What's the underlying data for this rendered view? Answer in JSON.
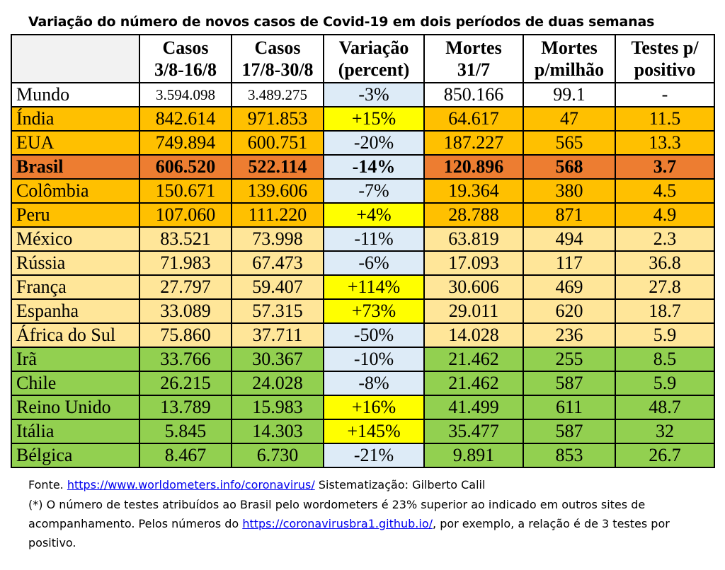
{
  "title": "Variação do número de novos casos de Covid-19 em dois períodos de duas semanas",
  "colors": {
    "white": "#ffffff",
    "orange": "#ffc000",
    "dark_orange": "#ed7d31",
    "light_orange": "#ffe699",
    "green": "#92d050",
    "yellow": "#ffff00",
    "light_blue": "#ddebf7",
    "header_gray": "#f2f2f2"
  },
  "headers": [
    {
      "line1": "",
      "line2": ""
    },
    {
      "line1": "Casos",
      "line2": "3/8-16/8"
    },
    {
      "line1": "Casos",
      "line2": "17/8-30/8"
    },
    {
      "line1": "Variação",
      "line2": "(percent)"
    },
    {
      "line1": "Mortes",
      "line2": "31/7"
    },
    {
      "line1": "Mortes",
      "line2": "p/milhão"
    },
    {
      "line1": "Testes p/",
      "line2": "positivo"
    }
  ],
  "rows": [
    {
      "country": "Mundo",
      "casos1": "3.594.098",
      "casos2": "3.489.275",
      "variacao": "-3%",
      "mortes": "850.166",
      "mortes_milhao": "99.1",
      "testes": "-",
      "row_color": "white",
      "var_color": "light_blue",
      "bold": false
    },
    {
      "country": "Índia",
      "casos1": "842.614",
      "casos2": "971.853",
      "variacao": "+15%",
      "mortes": "64.617",
      "mortes_milhao": "47",
      "testes": "11.5",
      "row_color": "orange",
      "var_color": "yellow",
      "bold": false
    },
    {
      "country": "EUA",
      "casos1": "749.894",
      "casos2": "600.751",
      "variacao": "-20%",
      "mortes": "187.227",
      "mortes_milhao": "565",
      "testes": "13.3",
      "row_color": "orange",
      "var_color": "light_blue",
      "bold": false
    },
    {
      "country": "Brasil",
      "casos1": "606.520",
      "casos2": "522.114",
      "variacao": "-14%",
      "mortes": "120.896",
      "mortes_milhao": "568",
      "testes": "3.7",
      "row_color": "dark_orange",
      "var_color": "light_blue",
      "bold": true
    },
    {
      "country": "Colômbia",
      "casos1": "150.671",
      "casos2": "139.606",
      "variacao": "-7%",
      "mortes": "19.364",
      "mortes_milhao": "380",
      "testes": "4.5",
      "row_color": "orange",
      "var_color": "light_blue",
      "bold": false
    },
    {
      "country": "Peru",
      "casos1": "107.060",
      "casos2": "111.220",
      "variacao": "+4%",
      "mortes": "28.788",
      "mortes_milhao": "871",
      "testes": "4.9",
      "row_color": "orange",
      "var_color": "yellow",
      "bold": false
    },
    {
      "country": "México",
      "casos1": "83.521",
      "casos2": "73.998",
      "variacao": "-11%",
      "mortes": "63.819",
      "mortes_milhao": "494",
      "testes": "2.3",
      "row_color": "light_orange",
      "var_color": "light_blue",
      "bold": false
    },
    {
      "country": "Rússia",
      "casos1": "71.983",
      "casos2": "67.473",
      "variacao": "-6%",
      "mortes": "17.093",
      "mortes_milhao": "117",
      "testes": "36.8",
      "row_color": "light_orange",
      "var_color": "light_blue",
      "bold": false
    },
    {
      "country": "França",
      "casos1": "27.797",
      "casos2": "59.407",
      "variacao": "+114%",
      "mortes": "30.606",
      "mortes_milhao": "469",
      "testes": "27.8",
      "row_color": "light_orange",
      "var_color": "yellow",
      "bold": false
    },
    {
      "country": "Espanha",
      "casos1": "33.089",
      "casos2": "57.315",
      "variacao": "+73%",
      "mortes": "29.011",
      "mortes_milhao": "620",
      "testes": "18.7",
      "row_color": "light_orange",
      "var_color": "yellow",
      "bold": false
    },
    {
      "country": "África do Sul",
      "casos1": "75.860",
      "casos2": "37.711",
      "variacao": "-50%",
      "mortes": "14.028",
      "mortes_milhao": "236",
      "testes": "5.9",
      "row_color": "light_orange",
      "var_color": "light_blue",
      "bold": false
    },
    {
      "country": "Irã",
      "casos1": "33.766",
      "casos2": "30.367",
      "variacao": "-10%",
      "mortes": "21.462",
      "mortes_milhao": "255",
      "testes": "8.5",
      "row_color": "green",
      "var_color": "light_blue",
      "bold": false
    },
    {
      "country": "Chile",
      "casos1": "26.215",
      "casos2": "24.028",
      "variacao": "-8%",
      "mortes": "21.462",
      "mortes_milhao": "587",
      "testes": "5.9",
      "row_color": "green",
      "var_color": "light_blue",
      "bold": false
    },
    {
      "country": "Reino Unido",
      "casos1": "13.789",
      "casos2": "15.983",
      "variacao": "+16%",
      "mortes": "41.499",
      "mortes_milhao": "611",
      "testes": "48.7",
      "row_color": "green",
      "var_color": "yellow",
      "bold": false
    },
    {
      "country": "Itália",
      "casos1": "5.845",
      "casos2": "14.303",
      "variacao": "+145%",
      "mortes": "35.477",
      "mortes_milhao": "587",
      "testes": "32",
      "row_color": "green",
      "var_color": "yellow",
      "bold": false
    },
    {
      "country": "Bélgica",
      "casos1": "8.467",
      "casos2": "6.730",
      "variacao": "-21%",
      "mortes": "9.891",
      "mortes_milhao": "853",
      "testes": "26.7",
      "row_color": "green",
      "var_color": "light_blue",
      "bold": false
    }
  ],
  "footer": {
    "source_prefix": "Fonte.",
    "source_link": "https://www.worldometers.info/coronavirus/",
    "source_suffix": " Sistematização: Gilberto Calil",
    "note_line1": "(*) O número de testes atribuídos ao Brasil pelo wordometers é 23% superior ao indicado em outros sites de",
    "note_line2_prefix": "acompanhamento. Pelos números do ",
    "note_link": "https://coronavirusbra1.github.io/",
    "note_line2_suffix": ", por exemplo, a relação é de 3 testes por",
    "note_line3": "positivo."
  }
}
